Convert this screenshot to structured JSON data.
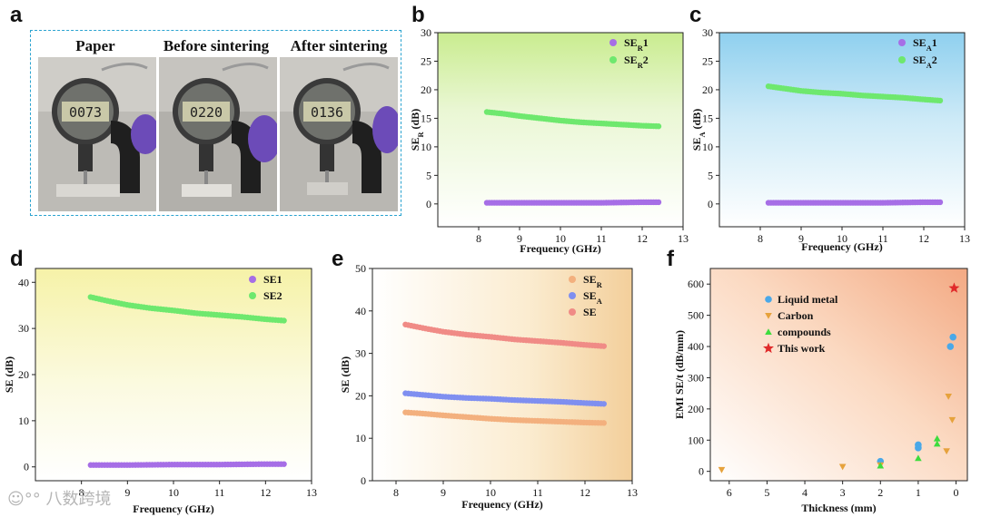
{
  "panel_labels": [
    "a",
    "b",
    "c",
    "d",
    "e",
    "f"
  ],
  "panel_a": {
    "titles": [
      "Paper",
      "Before sintering",
      "After sintering"
    ],
    "readings": [
      "0073",
      "0220",
      "0136"
    ]
  },
  "watermark": "八数跨境",
  "chart_data": [
    {
      "id": "b",
      "type": "scatter",
      "title": "",
      "xlabel": "Frequency (GHz)",
      "ylabel": "SE_R (dB)",
      "xlim": [
        7,
        13
      ],
      "ylim": [
        -4,
        30
      ],
      "xticks": [
        8,
        9,
        10,
        11,
        12,
        13
      ],
      "yticks": [
        0,
        5,
        10,
        15,
        20,
        25,
        30
      ],
      "legend_position": "top-right",
      "series": [
        {
          "name": "SE_R1",
          "label_base": "SE",
          "label_sub": "R",
          "label_suffix": "1",
          "color": "#a66ee6",
          "x": [
            8.2,
            9,
            10,
            11,
            12,
            12.4
          ],
          "y": [
            0.2,
            0.2,
            0.2,
            0.2,
            0.3,
            0.3
          ]
        },
        {
          "name": "SE_R2",
          "label_base": "SE",
          "label_sub": "R",
          "label_suffix": "2",
          "color": "#6ee86e",
          "x": [
            8.2,
            8.6,
            9,
            9.5,
            10,
            10.5,
            11,
            11.5,
            12,
            12.4
          ],
          "y": [
            16.1,
            15.8,
            15.4,
            15.0,
            14.6,
            14.3,
            14.1,
            13.9,
            13.7,
            13.6
          ]
        }
      ]
    },
    {
      "id": "c",
      "type": "scatter",
      "title": "",
      "xlabel": "Frequency (GHz)",
      "ylabel": "SE_A (dB)",
      "xlim": [
        7,
        13
      ],
      "ylim": [
        -4,
        30
      ],
      "xticks": [
        8,
        9,
        10,
        11,
        12,
        13
      ],
      "yticks": [
        0,
        5,
        10,
        15,
        20,
        25,
        30
      ],
      "legend_position": "top-right",
      "series": [
        {
          "name": "SE_A1",
          "label_base": "SE",
          "label_sub": "A",
          "label_suffix": "1",
          "color": "#a66ee6",
          "x": [
            8.2,
            9,
            10,
            11,
            12,
            12.4
          ],
          "y": [
            0.2,
            0.2,
            0.2,
            0.2,
            0.3,
            0.3
          ]
        },
        {
          "name": "SE_A2",
          "label_base": "SE",
          "label_sub": "A",
          "label_suffix": "2",
          "color": "#6ee86e",
          "x": [
            8.2,
            8.6,
            9,
            9.5,
            10,
            10.5,
            11,
            11.5,
            12,
            12.4
          ],
          "y": [
            20.6,
            20.2,
            19.8,
            19.5,
            19.3,
            19.0,
            18.8,
            18.6,
            18.3,
            18.1
          ]
        }
      ]
    },
    {
      "id": "d",
      "type": "scatter",
      "title": "",
      "xlabel": "Frequency (GHz)",
      "ylabel": "SE (dB)",
      "xlim": [
        7,
        13
      ],
      "ylim": [
        -3,
        43
      ],
      "xticks": [
        8,
        9,
        10,
        11,
        12,
        13
      ],
      "yticks": [
        0,
        10,
        20,
        30,
        40
      ],
      "legend_position": "top-right",
      "series": [
        {
          "name": "SE1",
          "label_base": "SE1",
          "label_sub": "",
          "label_suffix": "",
          "color": "#a66ee6",
          "x": [
            8.2,
            9,
            10,
            11,
            12,
            12.4
          ],
          "y": [
            0.4,
            0.4,
            0.5,
            0.5,
            0.6,
            0.6
          ]
        },
        {
          "name": "SE2",
          "label_base": "SE2",
          "label_sub": "",
          "label_suffix": "",
          "color": "#6ee86e",
          "x": [
            8.2,
            8.6,
            9,
            9.5,
            10,
            10.5,
            11,
            11.5,
            12,
            12.4
          ],
          "y": [
            36.8,
            35.9,
            35.1,
            34.4,
            33.9,
            33.3,
            32.9,
            32.5,
            32.0,
            31.7
          ]
        }
      ]
    },
    {
      "id": "e",
      "type": "scatter",
      "title": "",
      "xlabel": "Frequency (GHz)",
      "ylabel": "SE (dB)",
      "xlim": [
        7.5,
        13
      ],
      "ylim": [
        0,
        50
      ],
      "xticks": [
        8,
        9,
        10,
        11,
        12,
        13
      ],
      "yticks": [
        0,
        10,
        20,
        30,
        40,
        50
      ],
      "legend_position": "top-right",
      "series": [
        {
          "name": "SE_R",
          "label_base": "SE",
          "label_sub": "R",
          "label_suffix": "",
          "color": "#f3b07e",
          "x": [
            8.2,
            8.6,
            9,
            9.5,
            10,
            10.5,
            11,
            11.5,
            12,
            12.4
          ],
          "y": [
            16.1,
            15.8,
            15.4,
            15.0,
            14.6,
            14.3,
            14.1,
            13.9,
            13.7,
            13.6
          ]
        },
        {
          "name": "SE_A",
          "label_base": "SE",
          "label_sub": "A",
          "label_suffix": "",
          "color": "#7f8ff0",
          "x": [
            8.2,
            8.6,
            9,
            9.5,
            10,
            10.5,
            11,
            11.5,
            12,
            12.4
          ],
          "y": [
            20.6,
            20.2,
            19.8,
            19.5,
            19.3,
            19.0,
            18.8,
            18.6,
            18.3,
            18.1
          ]
        },
        {
          "name": "SE",
          "label_base": "SE",
          "label_sub": "",
          "label_suffix": "",
          "color": "#f08b86",
          "x": [
            8.2,
            8.6,
            9,
            9.5,
            10,
            10.5,
            11,
            11.5,
            12,
            12.4
          ],
          "y": [
            36.8,
            35.9,
            35.1,
            34.4,
            33.9,
            33.3,
            32.9,
            32.5,
            32.0,
            31.7
          ]
        }
      ]
    },
    {
      "id": "f",
      "type": "scatter",
      "title": "",
      "xlabel": "Thickness (mm)",
      "ylabel": "EMI SE/t (dB/mm)",
      "xlim": [
        6.5,
        -0.3
      ],
      "ylim": [
        -30,
        650
      ],
      "xticks": [
        6,
        5,
        4,
        3,
        2,
        1,
        0
      ],
      "yticks": [
        0,
        100,
        200,
        300,
        400,
        500,
        600
      ],
      "legend_position": "top-left",
      "series": [
        {
          "name": "Liquid metal",
          "label_base": "Liquid metal",
          "label_sub": "",
          "label_suffix": "",
          "color": "#4aa8e8",
          "marker": "circle",
          "x": [
            2.0,
            1.0,
            1.0,
            0.15,
            0.08
          ],
          "y": [
            32,
            75,
            85,
            400,
            430
          ]
        },
        {
          "name": "Carbon",
          "label_base": "Carbon",
          "label_sub": "",
          "label_suffix": "",
          "color": "#e6a23c",
          "marker": "triangle-down",
          "x": [
            6.2,
            3.0,
            2.0,
            0.25,
            0.2,
            0.1
          ],
          "y": [
            5,
            15,
            20,
            65,
            240,
            165
          ]
        },
        {
          "name": "compounds",
          "label_base": "compounds",
          "label_sub": "",
          "label_suffix": "",
          "color": "#3ddc3d",
          "marker": "triangle-up",
          "x": [
            2.0,
            1.0,
            0.5,
            0.5
          ],
          "y": [
            18,
            42,
            88,
            105
          ]
        },
        {
          "name": "This work",
          "label_base": "This work",
          "label_sub": "",
          "label_suffix": "",
          "color": "#e02a2a",
          "marker": "star",
          "x": [
            0.05
          ],
          "y": [
            587
          ]
        }
      ]
    }
  ]
}
